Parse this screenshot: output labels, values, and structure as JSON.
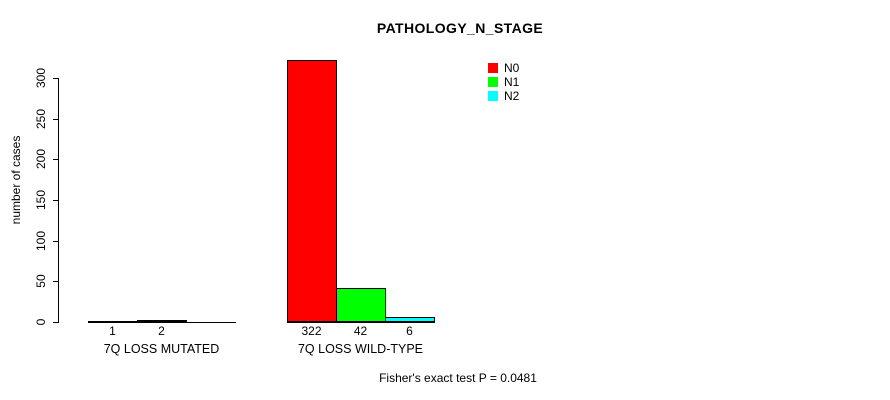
{
  "chart_data": {
    "type": "bar",
    "title": "PATHOLOGY_N_STAGE",
    "ylabel": "number of cases",
    "xlabel": "",
    "ylim": [
      0,
      300
    ],
    "yticks": [
      0,
      50,
      100,
      150,
      200,
      250,
      300
    ],
    "grid": false,
    "legend_position": "top-right",
    "categories": [
      "7Q LOSS MUTATED",
      "7Q LOSS WILD-TYPE"
    ],
    "series": [
      {
        "name": "N0",
        "color": "#FF0000",
        "values": [
          1,
          322
        ]
      },
      {
        "name": "N1",
        "color": "#00FF00",
        "values": [
          2,
          42
        ]
      },
      {
        "name": "N2",
        "color": "#00FFFF",
        "values": [
          0,
          6
        ]
      }
    ],
    "bar_value_labels": [
      [
        "1",
        "2",
        ""
      ],
      [
        "322",
        "42",
        "6"
      ]
    ],
    "footnote": "Fisher's exact test P = 0.0481",
    "axis_color": "#000000",
    "bar_border_color": "#000000"
  }
}
